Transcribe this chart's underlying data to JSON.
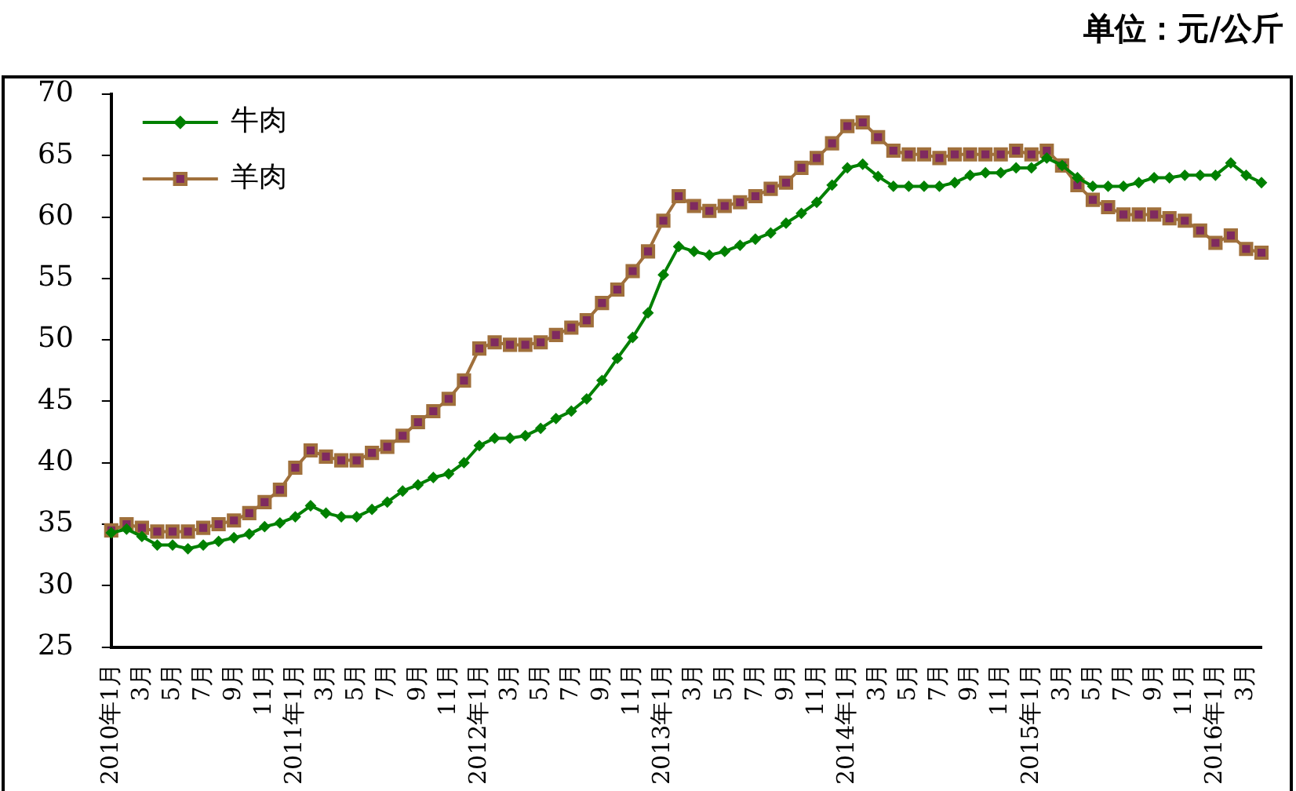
{
  "chart_data": {
    "type": "line",
    "title": "单位：元/公斤",
    "categories": [
      "2010年1月",
      null,
      "3月",
      null,
      "5月",
      null,
      "7月",
      null,
      "9月",
      null,
      "11月",
      null,
      "2011年1月",
      null,
      "3月",
      null,
      "5月",
      null,
      "7月",
      null,
      "9月",
      null,
      "11月",
      null,
      "2012年1月",
      null,
      "3月",
      null,
      "5月",
      null,
      "7月",
      null,
      "9月",
      null,
      "11月",
      null,
      "2013年1月",
      null,
      "3月",
      null,
      "5月",
      null,
      "7月",
      null,
      "9月",
      null,
      "11月",
      null,
      "2014年1月",
      null,
      "3月",
      null,
      "5月",
      null,
      "7月",
      null,
      "9月",
      null,
      "11月",
      null,
      "2015年1月",
      null,
      "3月",
      null,
      "5月",
      null,
      "7月",
      null,
      "9月",
      null,
      "11月",
      null,
      "2016年1月",
      null,
      "3月",
      null
    ],
    "series": [
      {
        "name": "牛肉",
        "color": "#008000",
        "marker": "diamond",
        "values": [
          34.3,
          34.6,
          34.0,
          33.3,
          33.3,
          33.0,
          33.3,
          33.6,
          33.9,
          34.2,
          34.8,
          35.1,
          35.6,
          36.5,
          35.9,
          35.6,
          35.6,
          36.2,
          36.8,
          37.7,
          38.2,
          38.8,
          39.1,
          40.0,
          41.4,
          42.0,
          42.0,
          42.2,
          42.8,
          43.6,
          44.2,
          45.2,
          46.7,
          48.5,
          50.2,
          52.2,
          55.3,
          57.6,
          57.2,
          56.9,
          57.2,
          57.7,
          58.2,
          58.7,
          59.5,
          60.3,
          61.2,
          62.6,
          64.0,
          64.3,
          63.3,
          62.5,
          62.5,
          62.5,
          62.5,
          62.8,
          63.4,
          63.6,
          63.6,
          64.0,
          64.0,
          64.8,
          64.2,
          63.2,
          62.5,
          62.5,
          62.5,
          62.8,
          63.2,
          63.2,
          63.4,
          63.4,
          63.4,
          64.4,
          63.4,
          62.8
        ]
      },
      {
        "name": "羊肉",
        "color": "#a0703c",
        "marker": "square",
        "values": [
          34.5,
          35.0,
          34.7,
          34.4,
          34.4,
          34.4,
          34.7,
          35.0,
          35.3,
          35.9,
          36.8,
          37.8,
          39.6,
          41.0,
          40.5,
          40.2,
          40.2,
          40.8,
          41.3,
          42.2,
          43.3,
          44.2,
          45.2,
          46.7,
          49.3,
          49.8,
          49.6,
          49.6,
          49.8,
          50.4,
          51.0,
          51.6,
          53.0,
          54.1,
          55.6,
          57.2,
          59.7,
          61.7,
          60.9,
          60.5,
          60.9,
          61.2,
          61.7,
          62.3,
          62.8,
          64.0,
          64.8,
          66.0,
          67.4,
          67.7,
          66.5,
          65.4,
          65.1,
          65.1,
          64.8,
          65.1,
          65.1,
          65.1,
          65.1,
          65.4,
          65.1,
          65.4,
          64.2,
          62.6,
          61.4,
          60.8,
          60.2,
          60.2,
          60.2,
          59.9,
          59.7,
          58.9,
          57.9,
          58.5,
          57.4,
          57.1
        ]
      }
    ],
    "ylim": [
      25,
      70
    ],
    "yticks": [
      25,
      30,
      35,
      40,
      45,
      50,
      55,
      60,
      65,
      70
    ],
    "legend": "top left",
    "line_style": "solid"
  }
}
